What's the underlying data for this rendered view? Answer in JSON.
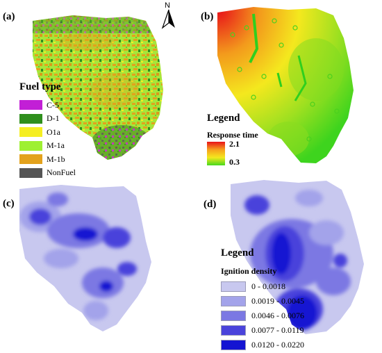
{
  "panels": {
    "a": "(a)",
    "b": "(b)",
    "c": "(c)",
    "d": "(d)"
  },
  "north_arrow": {
    "label": "N",
    "icon": "north-arrow-icon"
  },
  "fuel_legend": {
    "title": "Fuel type",
    "items": [
      {
        "label": "C-5",
        "color": "#c21fd6"
      },
      {
        "label": "D-1",
        "color": "#2f8f1d"
      },
      {
        "label": "O1a",
        "color": "#f5ee22"
      },
      {
        "label": "M-1a",
        "color": "#9ef032"
      },
      {
        "label": "M-1b",
        "color": "#e3a21c"
      },
      {
        "label": "NonFuel",
        "color": "#555555"
      }
    ]
  },
  "response_legend": {
    "title": "Legend",
    "subtitle": "Response time",
    "max_label": "2.1",
    "min_label": "0.3",
    "ramp_colors": [
      "#e8121a",
      "#f7a01c",
      "#f4e81e",
      "#46d81e"
    ]
  },
  "density_legend": {
    "title": "Legend",
    "subtitle": "Ignition density",
    "classes": [
      {
        "label": "0 - 0.0018",
        "color": "#c8c8ef"
      },
      {
        "label": "0.0019 - 0.0045",
        "color": "#a3a3ea"
      },
      {
        "label": "0.0046 - 0.0076",
        "color": "#7b78e3"
      },
      {
        "label": "0.0077 - 0.0119",
        "color": "#4a43db"
      },
      {
        "label": "0.0120 - 0.0220",
        "color": "#1414d2"
      }
    ]
  }
}
